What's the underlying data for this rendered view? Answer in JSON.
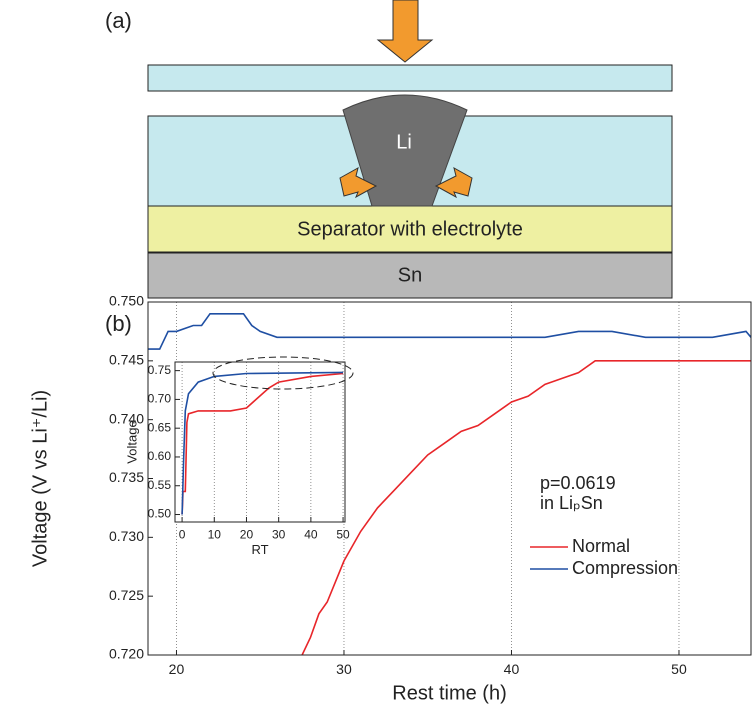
{
  "diagram": {
    "label": "(a)",
    "li": "Li",
    "separator": "Separator with electrolyte",
    "sn": "Sn"
  },
  "chart_data": [
    {
      "type": "line",
      "label": "(b)",
      "xlabel": "Rest time (h)",
      "ylabel": "Voltage (V vs Li⁺/Li)",
      "annotations": [
        "p=0.0619",
        "in LiₚSn"
      ],
      "xlim": [
        18.3,
        54.3
      ],
      "xticks": [
        20,
        30,
        40,
        50
      ],
      "ylim": [
        0.72,
        0.75
      ],
      "yticks": [
        {
          "value": 0.72,
          "label": "0.720"
        },
        0.725,
        {
          "value": 0.73,
          "label": "0.730"
        },
        0.735,
        {
          "value": 0.74,
          "label": "0.740"
        },
        0.745,
        {
          "value": 0.75,
          "label": "0.750"
        }
      ],
      "xgrid": true,
      "legend": "lower right",
      "series": [
        {
          "name": "Normal",
          "color": "#e8262a",
          "x": [
            27.5,
            28,
            28.5,
            29,
            30,
            31,
            32,
            33,
            34,
            35,
            36,
            37,
            38,
            39,
            40,
            41,
            42,
            43,
            44,
            45,
            47,
            50,
            54.3
          ],
          "values": [
            0.72,
            0.7215,
            0.7235,
            0.7245,
            0.728,
            0.7305,
            0.7325,
            0.734,
            0.7355,
            0.737,
            0.738,
            0.739,
            0.7395,
            0.7405,
            0.7415,
            0.742,
            0.743,
            0.7435,
            0.744,
            0.745,
            0.745,
            0.745,
            0.745
          ]
        },
        {
          "name": "Compression",
          "color": "#1f4fa3",
          "x": [
            18.3,
            19,
            19.5,
            20,
            21,
            21.5,
            22,
            23,
            24,
            24.5,
            25,
            26,
            28,
            30,
            32,
            34,
            36,
            38,
            40,
            42,
            44,
            46,
            48,
            50,
            52,
            54,
            54.3
          ],
          "values": [
            0.746,
            0.746,
            0.7475,
            0.7475,
            0.748,
            0.748,
            0.749,
            0.749,
            0.749,
            0.748,
            0.7475,
            0.747,
            0.747,
            0.747,
            0.747,
            0.747,
            0.747,
            0.747,
            0.747,
            0.747,
            0.7475,
            0.7475,
            0.747,
            0.747,
            0.747,
            0.7475,
            0.747
          ]
        }
      ]
    },
    {
      "type": "line",
      "xlabel": "RT",
      "ylabel": "Voltage",
      "xlim": [
        -2.2,
        50.6
      ],
      "xticks": [
        0,
        10,
        20,
        30,
        40,
        50
      ],
      "ylim": [
        0.487,
        0.765
      ],
      "yticks": [
        {
          "value": 0.5,
          "label": "0.50"
        },
        0.55,
        {
          "value": 0.6,
          "label": "0.60"
        },
        0.65,
        {
          "value": 0.7,
          "label": "0.70"
        },
        0.75
      ],
      "xgrid": true,
      "series": [
        {
          "color": "#e8262a",
          "x": [
            0,
            0.3,
            1,
            1.5,
            2,
            5,
            15,
            20,
            23,
            27,
            30,
            40,
            50
          ],
          "values": [
            0.5,
            0.54,
            0.54,
            0.66,
            0.675,
            0.68,
            0.68,
            0.685,
            0.7,
            0.72,
            0.73,
            0.74,
            0.745
          ]
        },
        {
          "color": "#1f4fa3",
          "x": [
            0,
            0.5,
            1,
            2,
            5,
            10,
            20,
            50
          ],
          "values": [
            0.5,
            0.6,
            0.68,
            0.71,
            0.73,
            0.74,
            0.745,
            0.747
          ]
        }
      ]
    }
  ]
}
